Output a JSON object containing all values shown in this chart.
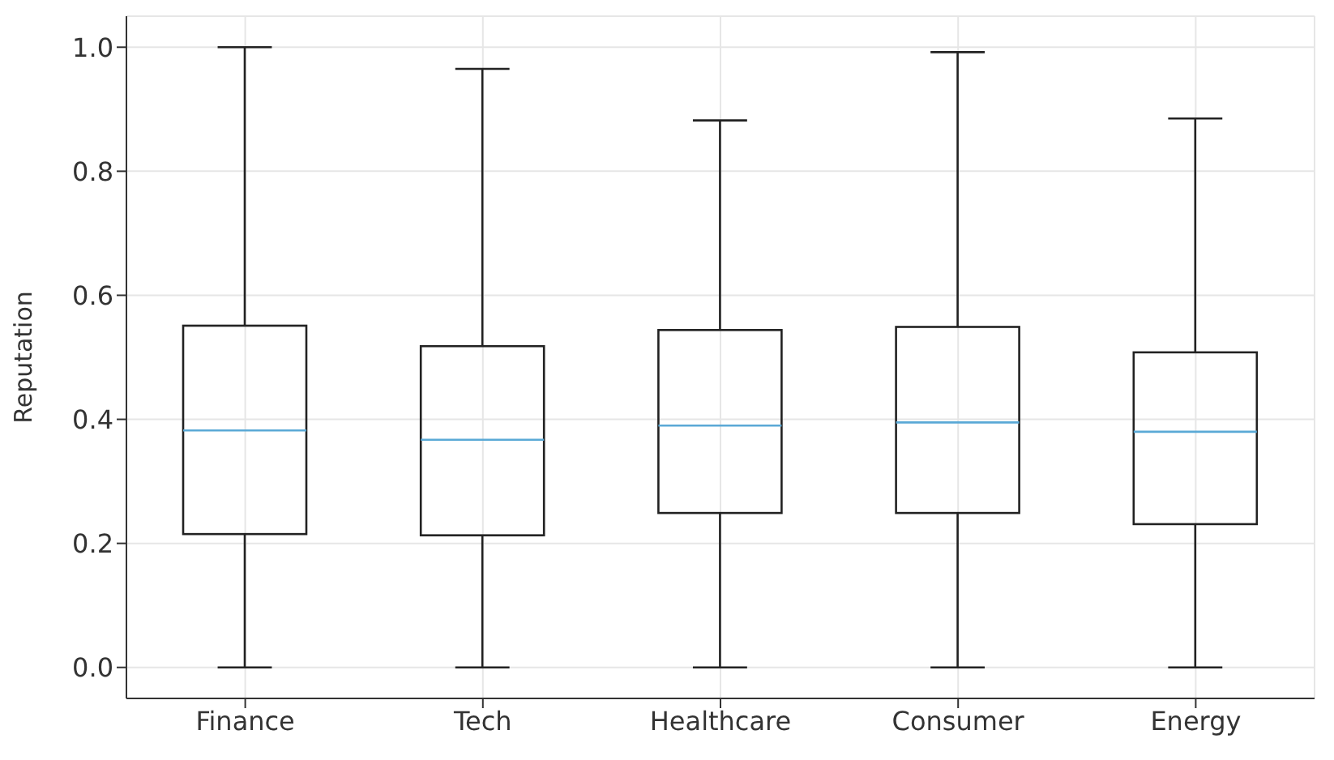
{
  "chart_data": {
    "type": "box",
    "categories": [
      "Finance",
      "Tech",
      "Healthcare",
      "Consumer",
      "Energy"
    ],
    "boxes": [
      {
        "low": 0,
        "q1": 0.215,
        "median": 0.382,
        "q3": 0.551,
        "high": 1.0
      },
      {
        "low": 0,
        "q1": 0.213,
        "median": 0.367,
        "q3": 0.518,
        "high": 0.965
      },
      {
        "low": 0,
        "q1": 0.249,
        "median": 0.39,
        "q3": 0.544,
        "high": 0.882
      },
      {
        "low": 0,
        "q1": 0.249,
        "median": 0.395,
        "q3": 0.549,
        "high": 0.992
      },
      {
        "low": 0,
        "q1": 0.231,
        "median": 0.38,
        "q3": 0.508,
        "high": 0.885
      }
    ],
    "color": "#222222",
    "ylabel": "Reputation",
    "ylim": [
      -0.05,
      1.05
    ],
    "yticks": [
      {
        "value": 0,
        "label": "0.0"
      },
      0.2,
      0.4,
      0.6,
      0.8,
      {
        "value": 1,
        "label": "1.0"
      }
    ],
    "grid": true
  }
}
